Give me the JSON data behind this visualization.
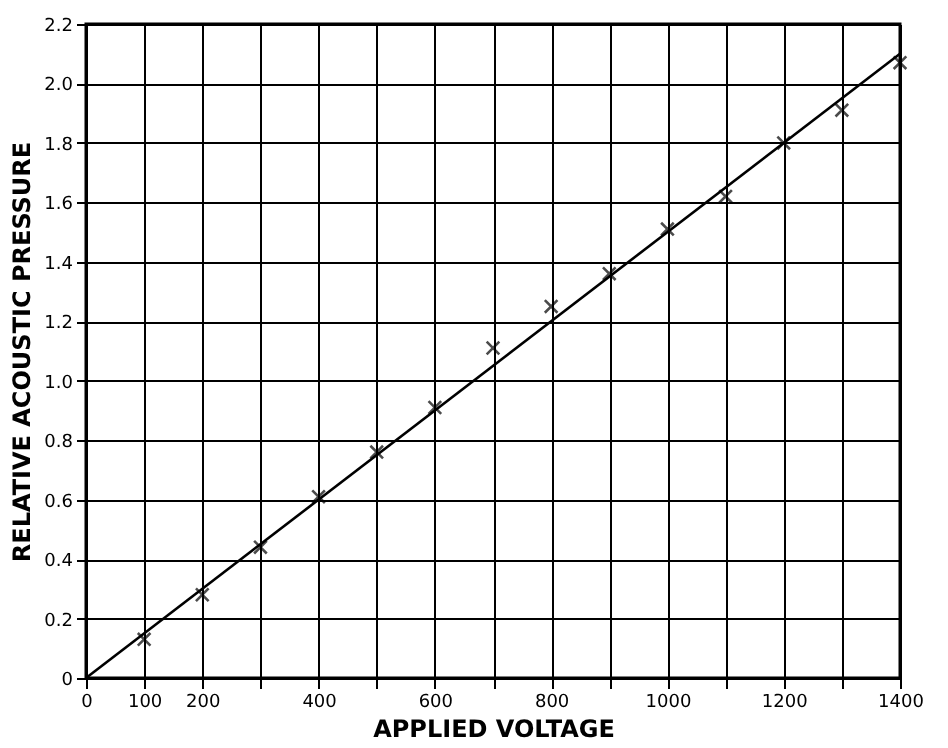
{
  "chart_data": {
    "type": "scatter",
    "xlabel": "APPLIED   VOLTAGE",
    "ylabel": "RELATIVE   ACOUSTIC   PRESSURE",
    "x": [
      100,
      200,
      300,
      400,
      500,
      600,
      700,
      800,
      900,
      1000,
      1100,
      1200,
      1300,
      1400
    ],
    "series": [
      {
        "color": "#000000",
        "marker": "cross",
        "values": [
          0.13,
          0.28,
          0.44,
          0.61,
          0.76,
          0.91,
          1.11,
          1.25,
          1.36,
          1.51,
          1.62,
          1.8,
          1.91,
          2.07
        ]
      },
      {
        "type": "line",
        "color": "#000000",
        "x": [
          0,
          1400
        ],
        "values": [
          0,
          2.1
        ],
        "line_style": "solid",
        "marker": "none"
      }
    ],
    "xlim": [
      0,
      1400
    ],
    "ylim": [
      0,
      2.2
    ],
    "xticks": [
      0,
      100,
      200,
      {
        "value": 300,
        "label": null
      },
      400,
      {
        "value": 500,
        "label": null
      },
      600,
      {
        "value": 700,
        "label": null
      },
      800,
      {
        "value": 900,
        "label": null
      },
      1000,
      {
        "value": 1100,
        "label": null
      },
      1200,
      {
        "value": 1300,
        "label": null
      },
      1400
    ],
    "yticks": [
      0,
      0.2,
      0.4,
      0.6,
      0.8,
      {
        "value": 1,
        "label": "1.0"
      },
      1.2,
      1.4,
      1.6,
      1.8,
      {
        "value": 2,
        "label": "2.0"
      },
      2.2
    ],
    "grid": true,
    "legend": false
  }
}
